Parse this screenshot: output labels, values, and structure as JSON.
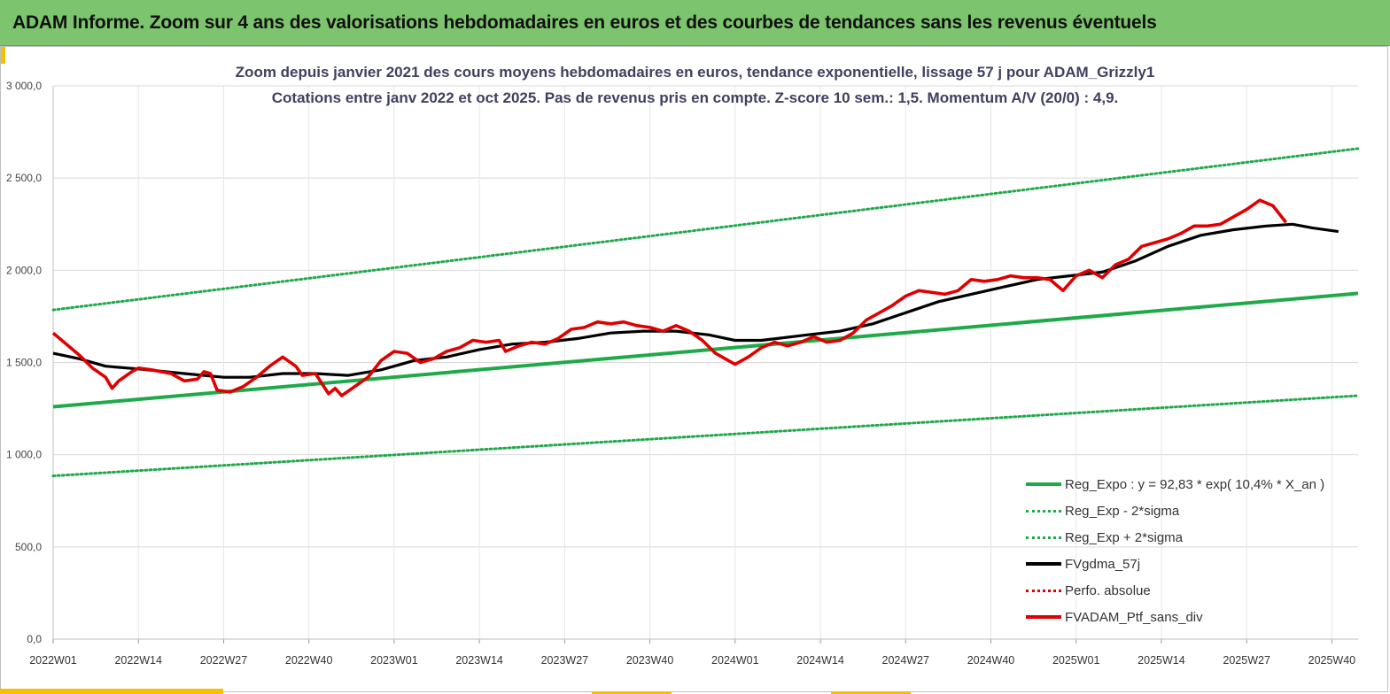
{
  "header": {
    "title": "ADAM Informe. Zoom sur 4 ans des valorisations hebdomadaires en euros et des courbes de tendances sans les revenus éventuels"
  },
  "colors": {
    "header_bg": "#7dc46e",
    "accent": "#f2c200",
    "trend_green": "#1faa4a",
    "smooth_black": "#000000",
    "price_red": "#e00000"
  },
  "chart_data": {
    "type": "line",
    "title": "Zoom depuis janvier 2021 des cours moyens hebdomadaires  en euros, tendance exponentielle, lissage 57 j pour ADAM_Grizzly1",
    "subtitle": "Cotations entre janv 2022 et oct 2025. Pas de revenus pris en compte. Z-score 10 sem.: 1,5. Momentum A/V (20/0) : 4,9.",
    "x_tick_labels": [
      "2022W01",
      "2022W14",
      "2022W27",
      "2022W40",
      "2023W01",
      "2023W14",
      "2023W27",
      "2023W40",
      "2024W01",
      "2024W14",
      "2024W27",
      "2024W40",
      "2025W01",
      "2025W14",
      "2025W27",
      "2025W40"
    ],
    "y_tick_labels": [
      "0,0",
      "500,0",
      "1 000,0",
      "1 500,0",
      "2 000,0",
      "2 500,0",
      "3 000,0"
    ],
    "ylim": [
      0,
      3000
    ],
    "x_range_weeks": [
      0,
      199
    ],
    "grid": true,
    "legend_position": "bottom-right",
    "series": [
      {
        "name": "Reg_Expo : y = 92,83 * exp( 10,4% *  X_an )",
        "style": "solid",
        "color": "#1faa4a",
        "points": [
          [
            0,
            1260
          ],
          [
            199,
            1875
          ]
        ]
      },
      {
        "name": "Reg_Exp - 2*sigma",
        "style": "dotted",
        "color": "#1faa4a",
        "points": [
          [
            0,
            885
          ],
          [
            199,
            1320
          ]
        ]
      },
      {
        "name": "Reg_Exp + 2*sigma",
        "style": "dotted",
        "color": "#1faa4a",
        "points": [
          [
            0,
            1785
          ],
          [
            199,
            2660
          ]
        ]
      },
      {
        "name": "FVgdma_57j",
        "style": "solid",
        "color": "#000000",
        "points": [
          [
            0,
            1550
          ],
          [
            4,
            1520
          ],
          [
            8,
            1480
          ],
          [
            13,
            1465
          ],
          [
            20,
            1440
          ],
          [
            26,
            1420
          ],
          [
            30,
            1420
          ],
          [
            35,
            1440
          ],
          [
            40,
            1440
          ],
          [
            45,
            1430
          ],
          [
            50,
            1460
          ],
          [
            55,
            1510
          ],
          [
            60,
            1530
          ],
          [
            65,
            1570
          ],
          [
            70,
            1600
          ],
          [
            75,
            1610
          ],
          [
            80,
            1630
          ],
          [
            85,
            1660
          ],
          [
            90,
            1670
          ],
          [
            95,
            1670
          ],
          [
            100,
            1650
          ],
          [
            104,
            1620
          ],
          [
            108,
            1620
          ],
          [
            115,
            1650
          ],
          [
            120,
            1670
          ],
          [
            125,
            1710
          ],
          [
            130,
            1770
          ],
          [
            135,
            1830
          ],
          [
            140,
            1870
          ],
          [
            145,
            1910
          ],
          [
            150,
            1950
          ],
          [
            155,
            1970
          ],
          [
            160,
            1990
          ],
          [
            165,
            2050
          ],
          [
            170,
            2130
          ],
          [
            175,
            2190
          ],
          [
            180,
            2220
          ],
          [
            185,
            2240
          ],
          [
            189,
            2250
          ],
          [
            192,
            2230
          ],
          [
            196,
            2210
          ]
        ]
      },
      {
        "name": "Perfo. absolue",
        "style": "dotted",
        "color": "#e00000",
        "points": []
      },
      {
        "name": "FVADAM_Ptf_sans_div",
        "style": "solid",
        "color": "#e00000",
        "points": [
          [
            0,
            1660
          ],
          [
            2,
            1600
          ],
          [
            4,
            1540
          ],
          [
            6,
            1470
          ],
          [
            8,
            1420
          ],
          [
            9,
            1360
          ],
          [
            10,
            1400
          ],
          [
            12,
            1450
          ],
          [
            13,
            1470
          ],
          [
            15,
            1460
          ],
          [
            18,
            1440
          ],
          [
            20,
            1400
          ],
          [
            22,
            1410
          ],
          [
            23,
            1450
          ],
          [
            24,
            1440
          ],
          [
            25,
            1350
          ],
          [
            27,
            1340
          ],
          [
            29,
            1370
          ],
          [
            31,
            1420
          ],
          [
            33,
            1480
          ],
          [
            35,
            1530
          ],
          [
            37,
            1480
          ],
          [
            38,
            1430
          ],
          [
            40,
            1440
          ],
          [
            42,
            1330
          ],
          [
            43,
            1360
          ],
          [
            44,
            1320
          ],
          [
            46,
            1370
          ],
          [
            48,
            1420
          ],
          [
            50,
            1510
          ],
          [
            52,
            1560
          ],
          [
            54,
            1550
          ],
          [
            56,
            1500
          ],
          [
            58,
            1520
          ],
          [
            60,
            1560
          ],
          [
            62,
            1580
          ],
          [
            64,
            1620
          ],
          [
            66,
            1610
          ],
          [
            68,
            1620
          ],
          [
            69,
            1560
          ],
          [
            71,
            1590
          ],
          [
            73,
            1610
          ],
          [
            75,
            1600
          ],
          [
            77,
            1630
          ],
          [
            79,
            1680
          ],
          [
            81,
            1690
          ],
          [
            83,
            1720
          ],
          [
            85,
            1710
          ],
          [
            87,
            1720
          ],
          [
            89,
            1700
          ],
          [
            91,
            1690
          ],
          [
            93,
            1670
          ],
          [
            95,
            1700
          ],
          [
            97,
            1670
          ],
          [
            99,
            1620
          ],
          [
            101,
            1550
          ],
          [
            103,
            1510
          ],
          [
            104,
            1490
          ],
          [
            106,
            1530
          ],
          [
            108,
            1580
          ],
          [
            110,
            1610
          ],
          [
            112,
            1590
          ],
          [
            114,
            1610
          ],
          [
            116,
            1640
          ],
          [
            118,
            1610
          ],
          [
            120,
            1620
          ],
          [
            122,
            1660
          ],
          [
            124,
            1730
          ],
          [
            126,
            1770
          ],
          [
            128,
            1810
          ],
          [
            130,
            1860
          ],
          [
            132,
            1890
          ],
          [
            134,
            1880
          ],
          [
            136,
            1870
          ],
          [
            138,
            1890
          ],
          [
            140,
            1950
          ],
          [
            142,
            1940
          ],
          [
            144,
            1950
          ],
          [
            146,
            1970
          ],
          [
            148,
            1960
          ],
          [
            150,
            1960
          ],
          [
            152,
            1950
          ],
          [
            154,
            1890
          ],
          [
            156,
            1970
          ],
          [
            158,
            2000
          ],
          [
            160,
            1960
          ],
          [
            162,
            2030
          ],
          [
            164,
            2060
          ],
          [
            166,
            2130
          ],
          [
            168,
            2150
          ],
          [
            170,
            2170
          ],
          [
            172,
            2200
          ],
          [
            174,
            2240
          ],
          [
            176,
            2240
          ],
          [
            178,
            2250
          ],
          [
            180,
            2290
          ],
          [
            182,
            2330
          ],
          [
            184,
            2380
          ],
          [
            186,
            2350
          ],
          [
            188,
            2260
          ]
        ]
      }
    ]
  }
}
